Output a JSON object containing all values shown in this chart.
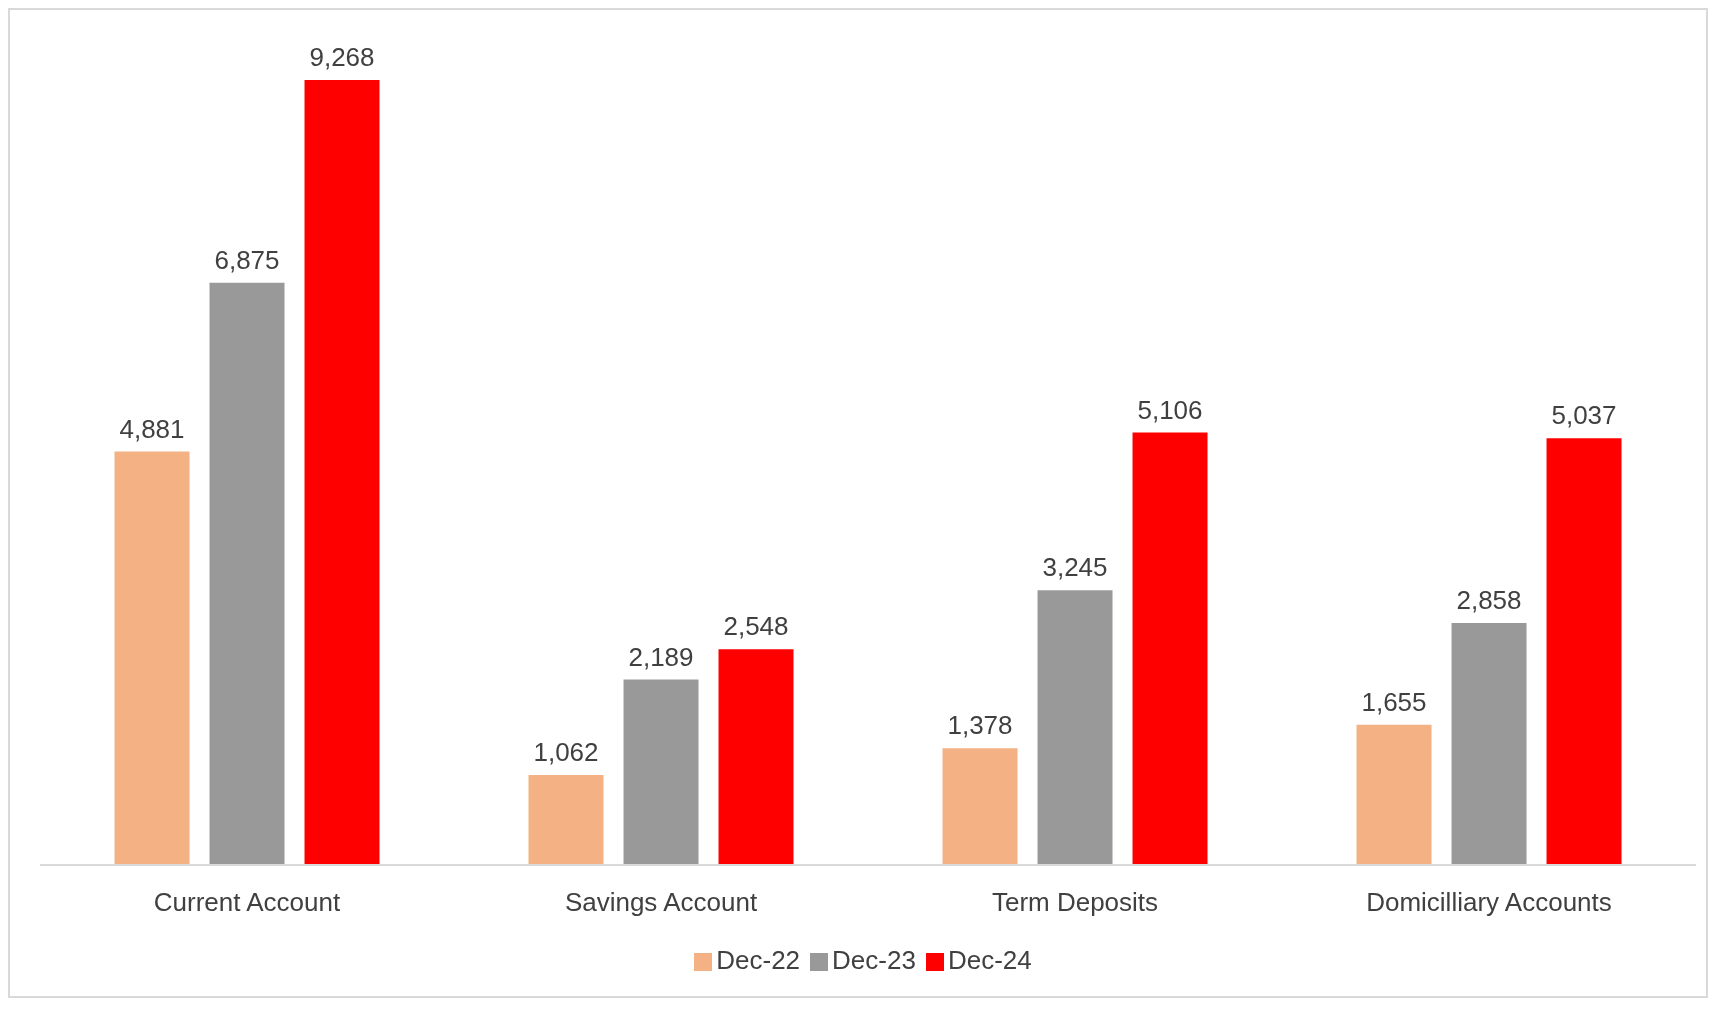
{
  "chart_data": {
    "type": "bar",
    "categories": [
      "Current Account",
      "Savings Account",
      "Term Deposits",
      "Domicilliary Accounts"
    ],
    "series": [
      {
        "name": "Dec-22",
        "color": "#f4b183",
        "values": [
          4881,
          1062,
          1378,
          1655
        ],
        "value_labels": [
          "4,881",
          "1,062",
          "1,378",
          "1,655"
        ]
      },
      {
        "name": "Dec-23",
        "color": "#999999",
        "values": [
          6875,
          2189,
          3245,
          2858
        ],
        "value_labels": [
          "6,875",
          "2,189",
          "3,245",
          "2,858"
        ]
      },
      {
        "name": "Dec-24",
        "color": "#ff0000",
        "values": [
          9268,
          2548,
          5106,
          5037
        ],
        "value_labels": [
          "9,268",
          "2,548",
          "5,106",
          "5,037"
        ]
      }
    ],
    "legend": "bottom"
  }
}
